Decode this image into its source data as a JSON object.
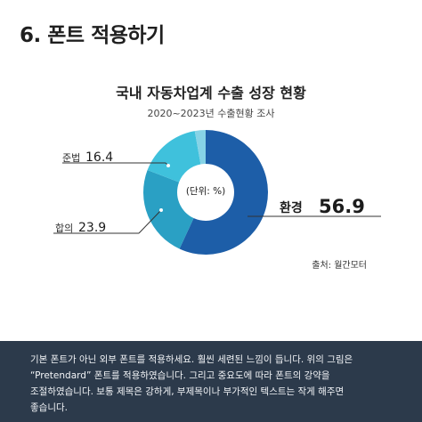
{
  "page": {
    "title": "6. 폰트 적용하기"
  },
  "chart_data": {
    "type": "pie",
    "title": "국내 자동차업계 수출 성장 현황",
    "subtitle": "2020~2023년 수출현황 조사",
    "center_label": "(단위: %)",
    "source": "출처: 월간모터",
    "slices": [
      {
        "name": "환경",
        "value": 56.9,
        "color": "#1d5ea8"
      },
      {
        "name": "합의",
        "value": 23.9,
        "color": "#2aa0c4"
      },
      {
        "name": "준법",
        "value": 16.4,
        "color": "#3fc1dc"
      },
      {
        "name": "",
        "value": 2.8,
        "color": "#86d3e6"
      }
    ]
  },
  "footer": {
    "lines": [
      "기본 폰트가 아닌 외부 폰트를 적용하세요. 훨씬 세련된 느낌이 듭니다. 위의 그림은",
      "“Pretendard” 폰트를 적용하였습니다. 그리고 중요도에 따라 폰트의 강약을",
      "조절하였습니다. 보통 제목은 강하게, 부제목이나 부가적인 텍스트는 작게 해주면",
      "좋습니다."
    ]
  }
}
